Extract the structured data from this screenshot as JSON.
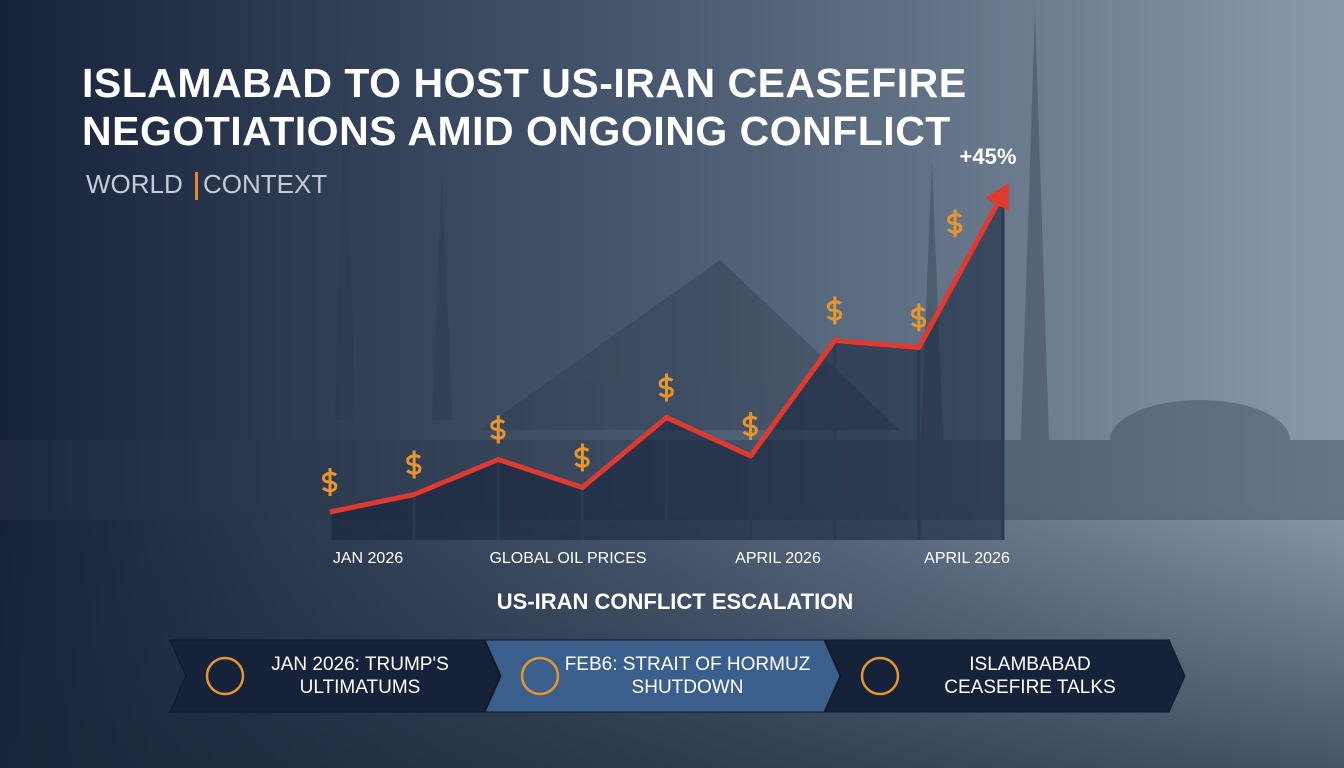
{
  "header": {
    "title_lines": [
      "ISLAMABAD TO HOST US-IRAN CEASEFIRE",
      "NEGOTIATIONS AMID ONGOING CONFLICT"
    ],
    "brand": [
      "WORLD",
      "CONTEXT"
    ]
  },
  "chart_data": {
    "type": "line",
    "annotation": "+45%",
    "caption": "US-IRAN CONFLICT ESCALATION",
    "axis_labels": [
      "JAN 2026",
      "GLOBAL OIL PRICES",
      "APRIL 2026",
      "APRIL 2026"
    ],
    "values": [
      8,
      13,
      23,
      15,
      35,
      24,
      57,
      55,
      99
    ],
    "color": "#e0392f",
    "ylim": [
      0,
      100
    ]
  },
  "timeline": [
    {
      "lines": [
        "JAN 2026: TRUMP'S",
        "ULTIMATUMS"
      ]
    },
    {
      "lines": [
        "FEB6: STRAIT OF HORMUZ",
        "SHUTDOWN"
      ]
    },
    {
      "lines": [
        "ISLAMBABAD",
        "CEASEFIRE TALKS"
      ]
    }
  ]
}
